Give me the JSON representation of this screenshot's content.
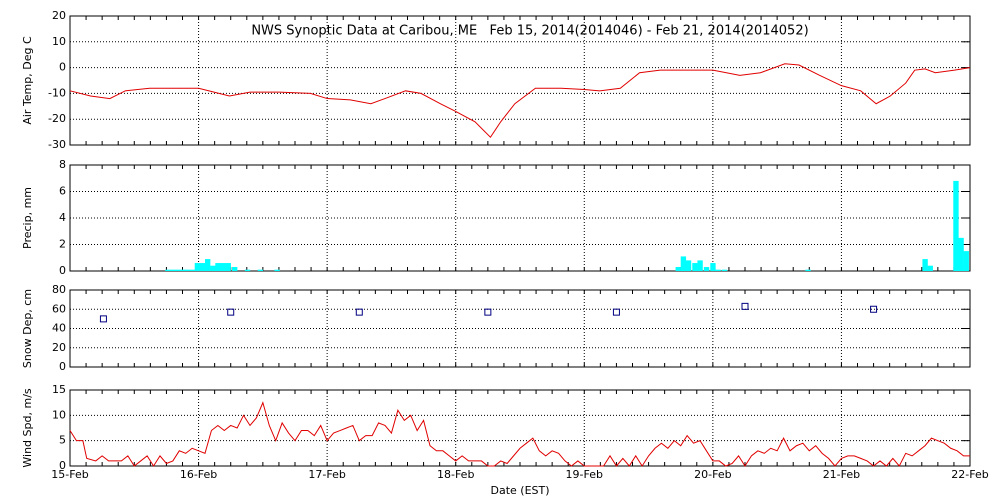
{
  "chart_data": [
    {
      "type": "line",
      "title": "NWS Synoptic Data at Caribou, ME   Feb 15, 2014(2014046) - Feb 21, 2014(2014052)",
      "ylabel": "Air Temp, Deg C",
      "color": "#e00000",
      "x": [
        15.0,
        15.16,
        15.31,
        15.43,
        15.62,
        15.78,
        16.0,
        16.24,
        16.4,
        16.63,
        16.87,
        17.0,
        17.18,
        17.34,
        17.45,
        17.61,
        17.73,
        17.88,
        18.0,
        18.15,
        18.27,
        18.35,
        18.46,
        18.62,
        18.82,
        19.0,
        19.12,
        19.28,
        19.43,
        19.59,
        19.82,
        20.0,
        20.21,
        20.37,
        20.56,
        20.67,
        20.83,
        21.0,
        21.15,
        21.27,
        21.38,
        21.5,
        21.57,
        21.65,
        21.73,
        21.88,
        22.0
      ],
      "values": [
        -9,
        -11,
        -12,
        -9,
        -8,
        -8,
        -8,
        -11,
        -9.5,
        -9.5,
        -10,
        -12,
        -12.5,
        -14,
        -12,
        -9,
        -10,
        -14,
        -17,
        -21,
        -27,
        -21,
        -14,
        -8,
        -8,
        -8.5,
        -9,
        -8,
        -2,
        -1,
        -1,
        -1,
        -3,
        -2,
        1.5,
        1,
        -3,
        -7,
        -9,
        -14,
        -11,
        -6,
        -1,
        -0.5,
        -2,
        -1,
        0
      ],
      "xlim": [
        15,
        22
      ],
      "ylim": [
        -30,
        20
      ],
      "yticks": [
        -30,
        -20,
        -10,
        0,
        10,
        20
      ],
      "grid": true
    },
    {
      "type": "bar",
      "ylabel": "Precip, mm",
      "color": "#00ffff",
      "x": [
        15.74,
        15.78,
        15.82,
        15.86,
        15.89,
        15.93,
        15.97,
        16.01,
        16.05,
        16.09,
        16.13,
        16.17,
        16.21,
        16.26,
        16.36,
        16.46,
        16.59,
        19.71,
        19.75,
        19.79,
        19.84,
        19.88,
        19.93,
        19.98,
        20.02,
        20.07,
        20.72,
        21.63,
        21.67,
        21.87,
        21.91,
        21.95
      ],
      "values": [
        0.1,
        0.1,
        0.1,
        0.1,
        0.1,
        0.1,
        0.6,
        0.6,
        0.9,
        0.4,
        0.6,
        0.6,
        0.6,
        0.3,
        0.1,
        0.1,
        0.1,
        0.3,
        1.1,
        0.8,
        0.6,
        0.8,
        0.3,
        0.6,
        0.1,
        0.1,
        0.1,
        0.9,
        0.4,
        6.8,
        2.5,
        1.5
      ],
      "xlim": [
        15,
        22
      ],
      "ylim": [
        0,
        8
      ],
      "yticks": [
        0,
        2,
        4,
        6,
        8
      ],
      "grid": true
    },
    {
      "type": "scatter",
      "ylabel": "Snow Dep, cm",
      "color": "#000080",
      "x": [
        15.26,
        16.25,
        17.25,
        18.25,
        19.25,
        20.25,
        21.25
      ],
      "values": [
        50,
        57,
        57,
        57,
        57,
        63,
        60
      ],
      "xlim": [
        15,
        22
      ],
      "ylim": [
        0,
        80
      ],
      "yticks": [
        0,
        20,
        40,
        60,
        80
      ],
      "grid": true
    },
    {
      "type": "line",
      "ylabel": "Wind Spd, m/s",
      "xlabel": "Date (EST)",
      "color": "#e00000",
      "x": [
        15.0,
        15.05,
        15.1,
        15.13,
        15.2,
        15.25,
        15.3,
        15.4,
        15.45,
        15.5,
        15.55,
        15.6,
        15.65,
        15.7,
        15.75,
        15.8,
        15.85,
        15.9,
        15.95,
        16.0,
        16.05,
        16.1,
        16.15,
        16.2,
        16.25,
        16.3,
        16.35,
        16.4,
        16.45,
        16.5,
        16.55,
        16.6,
        16.65,
        16.7,
        16.75,
        16.8,
        16.85,
        16.9,
        16.95,
        17.0,
        17.05,
        17.1,
        17.15,
        17.2,
        17.25,
        17.3,
        17.35,
        17.4,
        17.45,
        17.5,
        17.55,
        17.6,
        17.65,
        17.7,
        17.75,
        17.8,
        17.85,
        17.9,
        17.95,
        18.0,
        18.05,
        18.1,
        18.2,
        18.25,
        18.3,
        18.35,
        18.4,
        18.45,
        18.5,
        18.55,
        18.6,
        18.65,
        18.7,
        18.75,
        18.8,
        18.85,
        18.9,
        18.95,
        19.0,
        19.1,
        19.15,
        19.2,
        19.25,
        19.3,
        19.35,
        19.4,
        19.45,
        19.5,
        19.55,
        19.6,
        19.65,
        19.7,
        19.75,
        19.8,
        19.85,
        19.9,
        19.95,
        20.0,
        20.05,
        20.1,
        20.15,
        20.2,
        20.25,
        20.3,
        20.35,
        20.4,
        20.45,
        20.5,
        20.55,
        20.6,
        20.65,
        20.7,
        20.75,
        20.8,
        20.85,
        20.9,
        20.95,
        21.0,
        21.05,
        21.1,
        21.15,
        21.2,
        21.25,
        21.3,
        21.35,
        21.4,
        21.45,
        21.5,
        21.55,
        21.6,
        21.65,
        21.7,
        21.75,
        21.8,
        21.85,
        21.9,
        21.95,
        22.0
      ],
      "values": [
        7,
        5,
        5,
        1.5,
        1,
        2,
        1,
        1,
        2,
        0,
        1,
        2,
        0,
        2,
        0.5,
        1,
        3,
        2.5,
        3.5,
        3,
        2.5,
        7,
        8,
        7,
        8,
        7.5,
        10,
        8,
        9.5,
        12.5,
        8,
        5,
        8.5,
        6.5,
        5,
        7,
        7,
        6,
        8,
        5,
        6.5,
        7,
        7.5,
        8,
        5,
        6,
        6,
        8.5,
        8,
        6.5,
        11,
        9,
        10,
        7,
        9,
        4,
        3,
        3,
        2,
        1,
        2,
        1,
        1,
        0,
        0,
        1,
        0.5,
        2,
        3.5,
        4.5,
        5.5,
        3,
        2,
        3,
        2.5,
        1,
        0,
        1,
        0,
        0,
        0,
        2,
        0,
        1.5,
        0,
        2,
        0,
        2,
        3.5,
        4.5,
        3.5,
        5,
        4,
        6,
        4.5,
        5,
        3,
        1,
        1,
        0,
        0.5,
        2,
        0,
        2,
        3,
        2.5,
        3.5,
        3,
        5.5,
        3,
        4,
        4.5,
        3,
        4,
        2.5,
        1.5,
        0,
        1.5,
        2,
        2,
        1.5,
        1,
        0,
        1,
        0,
        1.5,
        0,
        2.5,
        2,
        3,
        4,
        5.5,
        5,
        4.5,
        3.5,
        3,
        2,
        2
      ],
      "xlim": [
        15,
        22
      ],
      "ylim": [
        0,
        15
      ],
      "yticks": [
        0,
        5,
        10,
        15
      ],
      "grid": true,
      "xticks": [
        {
          "value": 15,
          "label": "15-Feb"
        },
        {
          "value": 16,
          "label": "16-Feb"
        },
        {
          "value": 17,
          "label": "17-Feb"
        },
        {
          "value": 18,
          "label": "18-Feb"
        },
        {
          "value": 19,
          "label": "19-Feb"
        },
        {
          "value": 20,
          "label": "20-Feb"
        },
        {
          "value": 21,
          "label": "21-Feb"
        },
        {
          "value": 22,
          "label": "22-Feb"
        }
      ]
    }
  ]
}
